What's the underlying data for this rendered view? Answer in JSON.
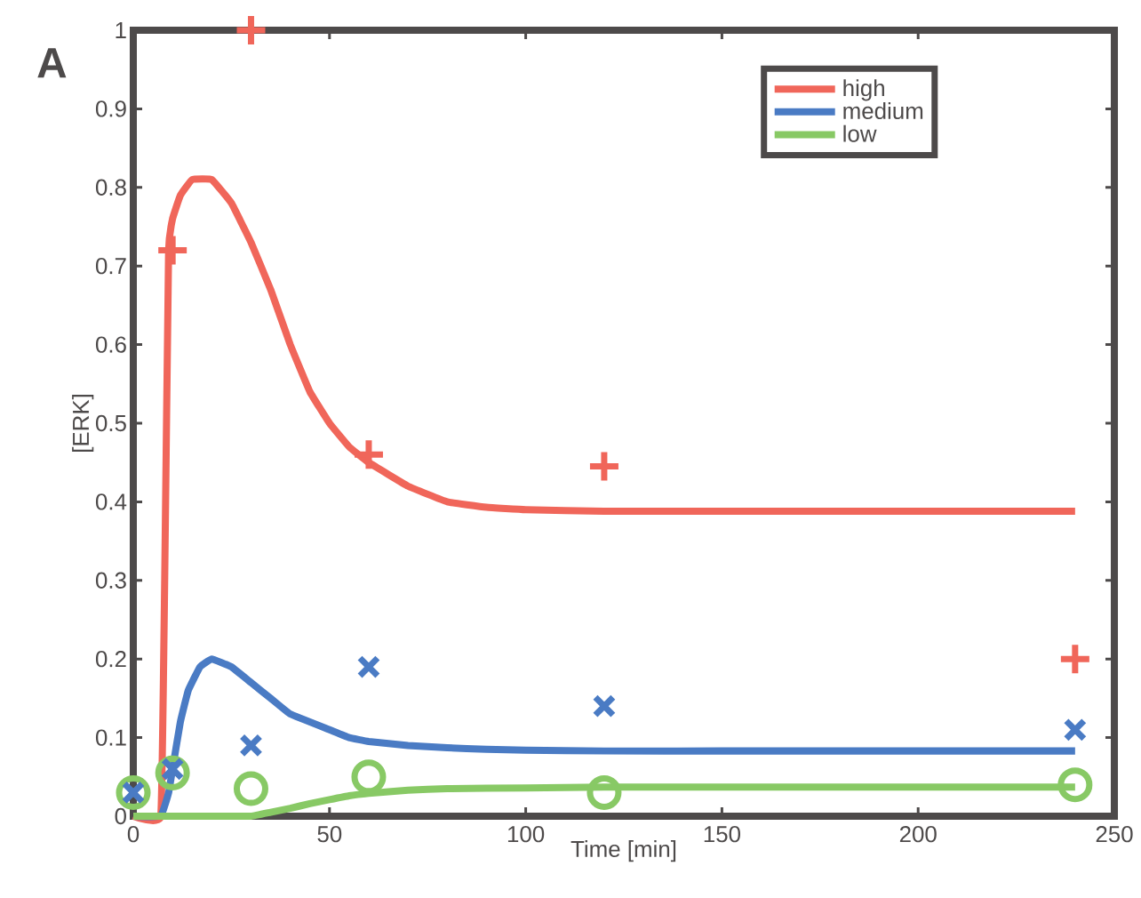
{
  "chart_data": {
    "type": "line",
    "xlabel": "Time [min]",
    "ylabel": "[ERK]",
    "annotations": [
      "A"
    ],
    "xlim": [
      0,
      250
    ],
    "ylim": [
      0,
      1
    ],
    "xticks": [
      0,
      50,
      100,
      150,
      200,
      250
    ],
    "yticks": [
      0,
      0.1,
      0.2,
      0.3,
      0.4,
      0.5,
      0.6,
      0.7,
      0.8,
      0.9,
      1
    ],
    "legend": "top right",
    "grid": false,
    "series": [
      {
        "name": "high",
        "color": "#f0665a",
        "marker": "none",
        "x": [
          0,
          7,
          8,
          9,
          10,
          12,
          15,
          20,
          25,
          30,
          35,
          40,
          45,
          50,
          55,
          60,
          70,
          80,
          90,
          100,
          120,
          150,
          200,
          240
        ],
        "values": [
          0,
          0,
          0.3,
          0.72,
          0.76,
          0.79,
          0.81,
          0.81,
          0.78,
          0.73,
          0.67,
          0.6,
          0.54,
          0.5,
          0.47,
          0.45,
          0.42,
          0.4,
          0.393,
          0.39,
          0.388,
          0.388,
          0.388,
          0.388
        ]
      },
      {
        "name": "medium",
        "color": "#4a7bc4",
        "marker": "none",
        "x": [
          0,
          7,
          9,
          10,
          12,
          14,
          17,
          20,
          25,
          30,
          35,
          40,
          50,
          55,
          60,
          70,
          80,
          90,
          100,
          120,
          150,
          200,
          240
        ],
        "values": [
          0,
          0,
          0.03,
          0.06,
          0.12,
          0.16,
          0.19,
          0.2,
          0.19,
          0.17,
          0.15,
          0.13,
          0.11,
          0.1,
          0.095,
          0.09,
          0.087,
          0.085,
          0.084,
          0.083,
          0.083,
          0.083,
          0.083
        ]
      },
      {
        "name": "low",
        "color": "#88c965",
        "marker": "none",
        "x": [
          0,
          10,
          20,
          30,
          35,
          40,
          45,
          50,
          55,
          60,
          70,
          80,
          100,
          120,
          150,
          200,
          240
        ],
        "values": [
          0,
          0,
          0,
          0,
          0.005,
          0.01,
          0.016,
          0.021,
          0.026,
          0.029,
          0.033,
          0.035,
          0.036,
          0.037,
          0.037,
          0.037,
          0.037
        ]
      },
      {
        "type": "scatter",
        "color": "#f0665a",
        "marker": "plus",
        "x": [
          10,
          30,
          60,
          120,
          240
        ],
        "values": [
          0.72,
          1.0,
          0.46,
          0.445,
          0.2
        ]
      },
      {
        "type": "scatter",
        "color": "#88c965",
        "marker": "circle",
        "x": [
          0,
          10,
          30,
          60,
          120,
          240
        ],
        "values": [
          0.03,
          0.055,
          0.035,
          0.05,
          0.03,
          0.04
        ]
      },
      {
        "type": "scatter",
        "color": "#4a7bc4",
        "marker": "cross",
        "x": [
          0,
          10,
          30,
          60,
          120,
          240
        ],
        "values": [
          0.03,
          0.06,
          0.09,
          0.19,
          0.14,
          0.11
        ]
      }
    ]
  }
}
